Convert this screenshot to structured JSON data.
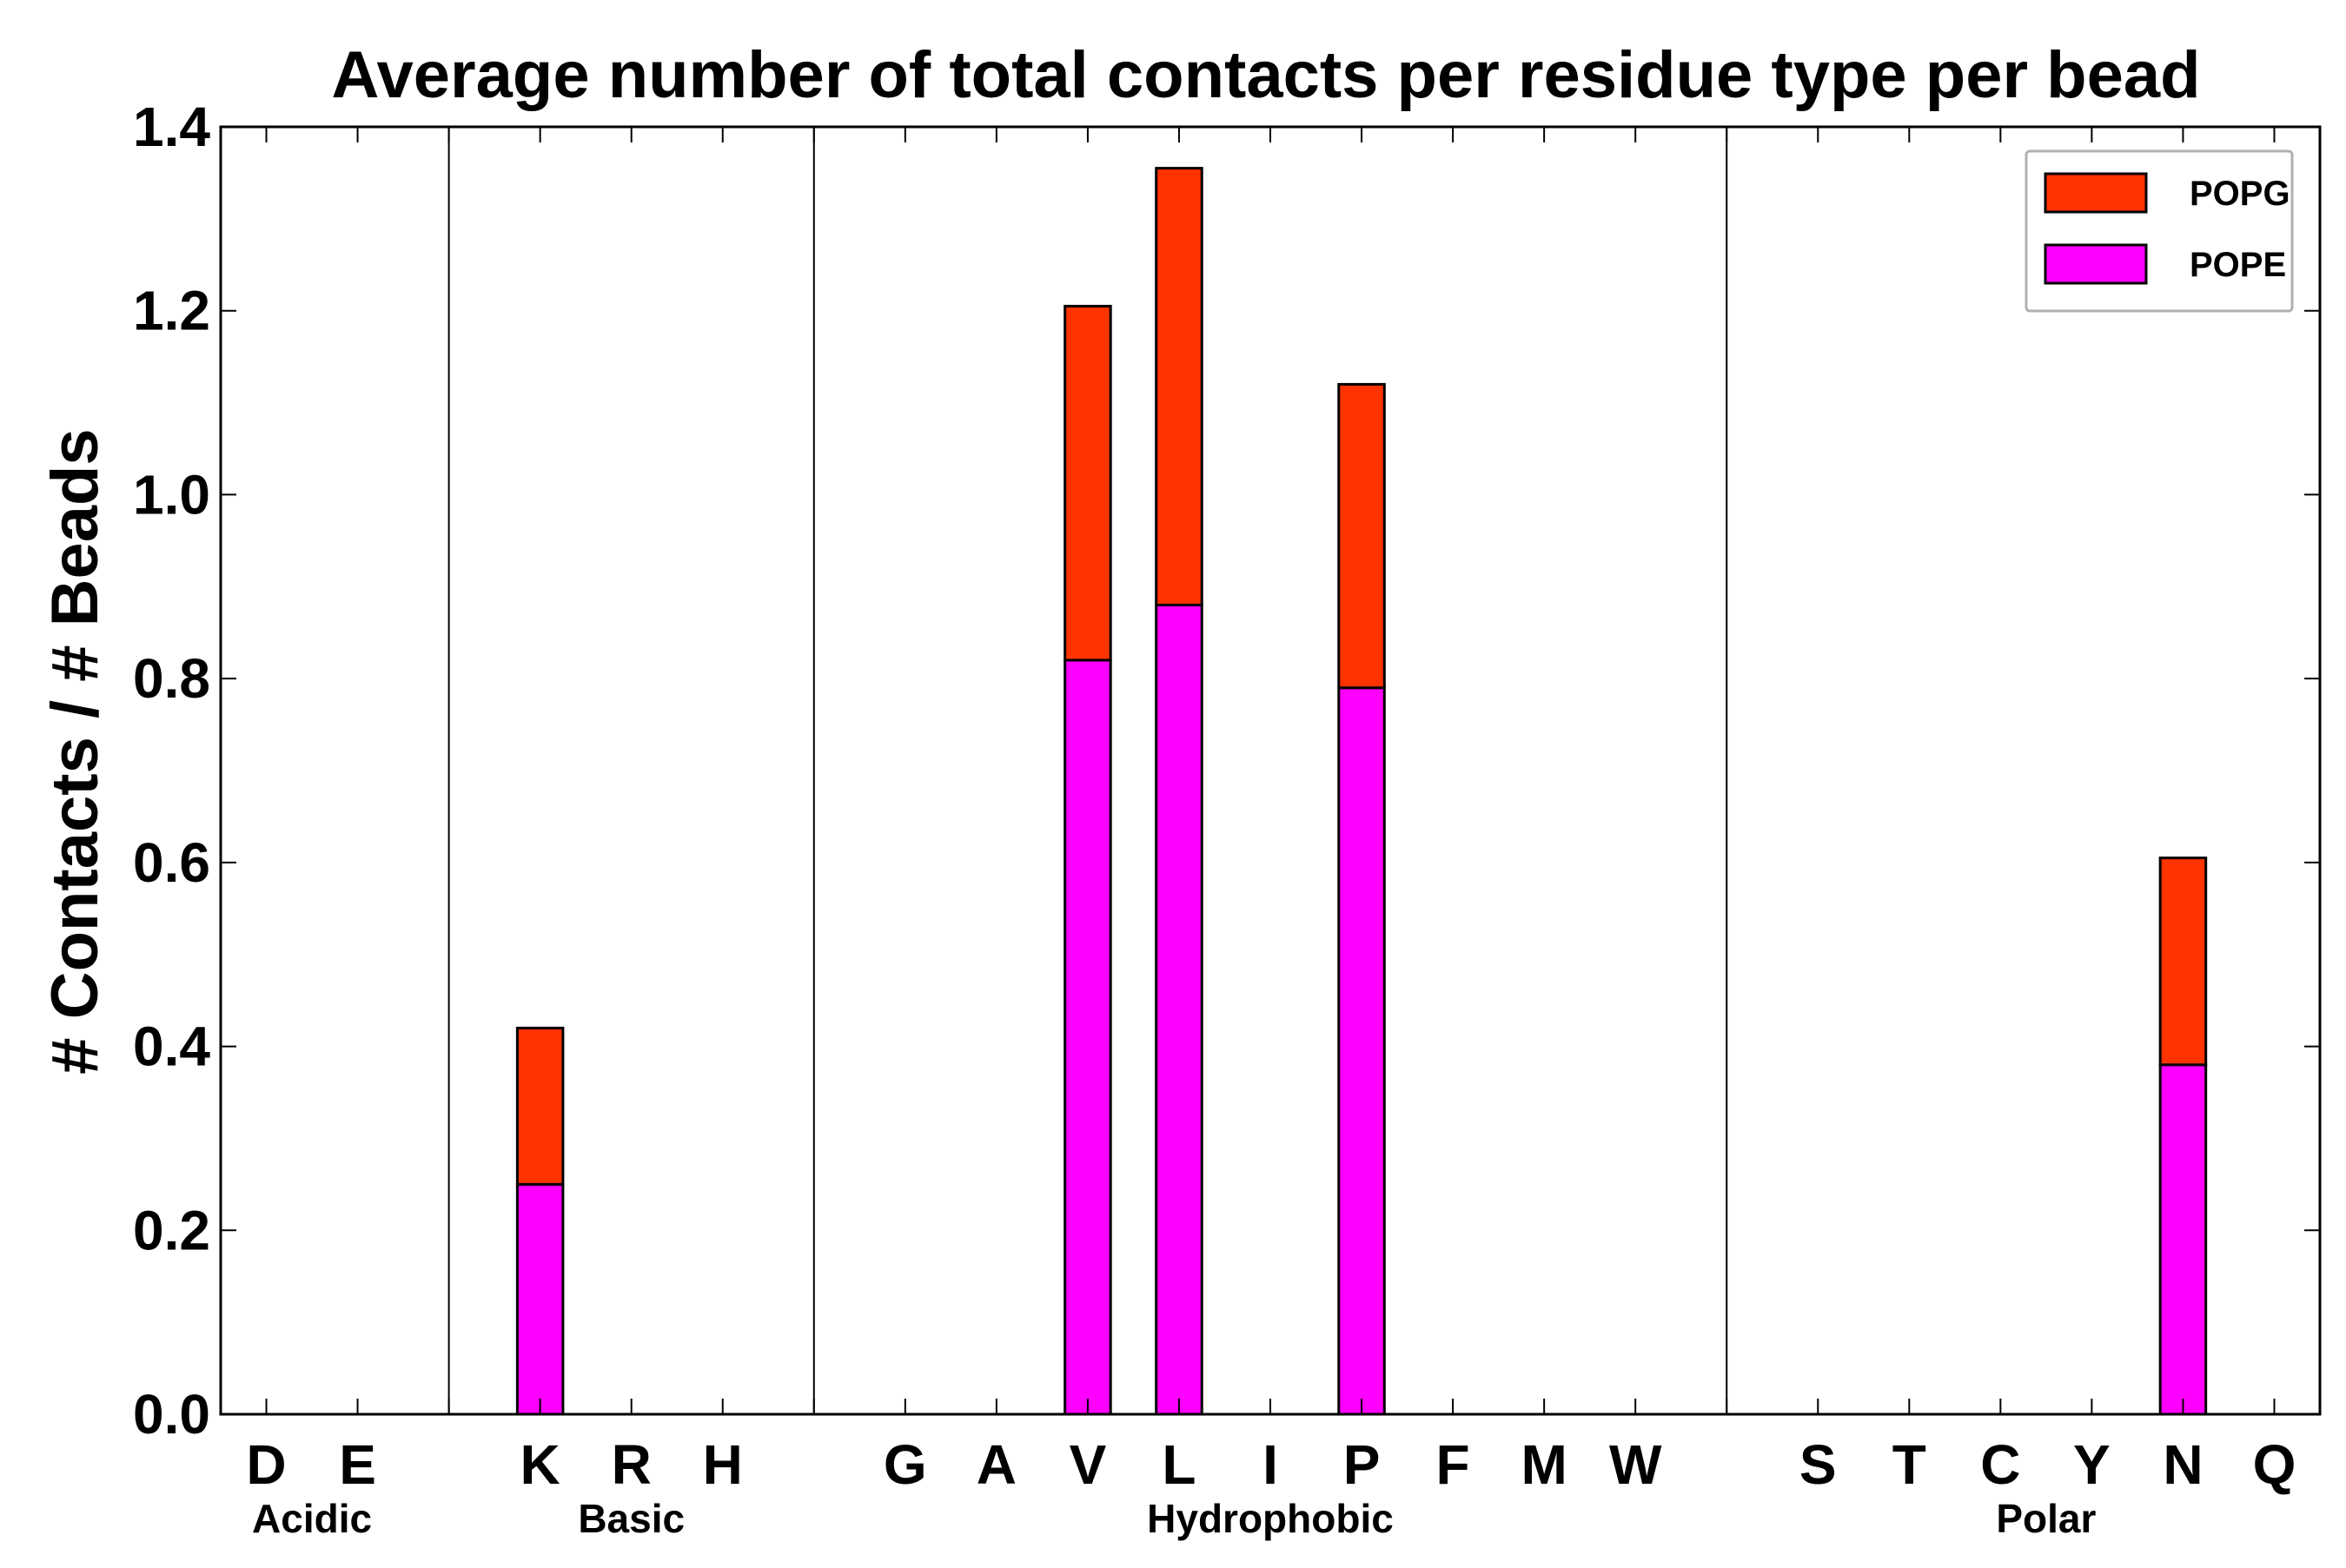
{
  "chart_data": {
    "type": "bar",
    "stacked": true,
    "title": "Average number of total contacts per residue type per bead",
    "xlabel": "",
    "ylabel": "# Contacts / # Beads",
    "ylim": [
      0,
      1.4
    ],
    "yticks": [
      "0.0",
      "0.2",
      "0.4",
      "0.6",
      "0.8",
      "1.0",
      "1.2",
      "1.4"
    ],
    "slots": [
      "D",
      "E",
      "",
      "K",
      "R",
      "H",
      "",
      "G",
      "A",
      "V",
      "L",
      "I",
      "P",
      "F",
      "M",
      "W",
      "",
      "S",
      "T",
      "C",
      "Y",
      "N",
      "Q"
    ],
    "categories": [
      "D",
      "E",
      "K",
      "R",
      "H",
      "G",
      "A",
      "V",
      "L",
      "I",
      "P",
      "F",
      "M",
      "W",
      "S",
      "T",
      "C",
      "Y",
      "N",
      "Q"
    ],
    "series": [
      {
        "name": "POPE",
        "color": "#ff00ff",
        "values": [
          0,
          0,
          0.25,
          0,
          0,
          0,
          0,
          0.82,
          0.88,
          0,
          0.79,
          0,
          0,
          0,
          0,
          0,
          0,
          0,
          0.38,
          0
        ]
      },
      {
        "name": "POPG",
        "color": "#ff3300",
        "values": [
          0,
          0,
          0.17,
          0,
          0,
          0,
          0,
          0.385,
          0.475,
          0,
          0.33,
          0,
          0,
          0,
          0,
          0,
          0,
          0,
          0.225,
          0
        ]
      }
    ],
    "groups": [
      {
        "label": "Acidic",
        "members": [
          "D",
          "E"
        ]
      },
      {
        "label": "Basic",
        "members": [
          "K",
          "R",
          "H"
        ]
      },
      {
        "label": "Hydrophobic",
        "members": [
          "G",
          "A",
          "V",
          "L",
          "I",
          "P",
          "F",
          "M",
          "W"
        ]
      },
      {
        "label": "Polar",
        "members": [
          "S",
          "T",
          "C",
          "Y",
          "N",
          "Q"
        ]
      }
    ],
    "legend": {
      "position": "top-right",
      "entries": [
        {
          "label": "POPG",
          "color": "#ff3300"
        },
        {
          "label": "POPE",
          "color": "#ff00ff"
        }
      ]
    },
    "grid": false
  }
}
